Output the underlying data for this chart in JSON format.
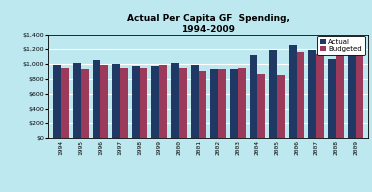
{
  "title": "Actual Per Capita GF  Spending,\n1994-2009",
  "years": [
    "1994",
    "1995",
    "1996",
    "1997",
    "1998",
    "1999",
    "2000",
    "2001",
    "2002",
    "2003",
    "2004",
    "2005",
    "2006",
    "2007",
    "2008",
    "2009"
  ],
  "actual": [
    995,
    1020,
    1055,
    1000,
    970,
    980,
    1010,
    985,
    940,
    930,
    1120,
    1195,
    1255,
    1195,
    1065,
    1320
  ],
  "budgeted": [
    945,
    935,
    995,
    945,
    955,
    990,
    945,
    905,
    935,
    945,
    865,
    855,
    1170,
    1140,
    1165,
    1190
  ],
  "actual_color": "#1F3864",
  "budgeted_color": "#9B3A5A",
  "background_color": "#BEE8F0",
  "ylim": [
    0,
    1400
  ],
  "yticks": [
    0,
    200,
    400,
    600,
    800,
    1000,
    1200,
    1400
  ],
  "bar_width": 0.4,
  "legend_labels": [
    "Actual",
    "Budgeted"
  ]
}
